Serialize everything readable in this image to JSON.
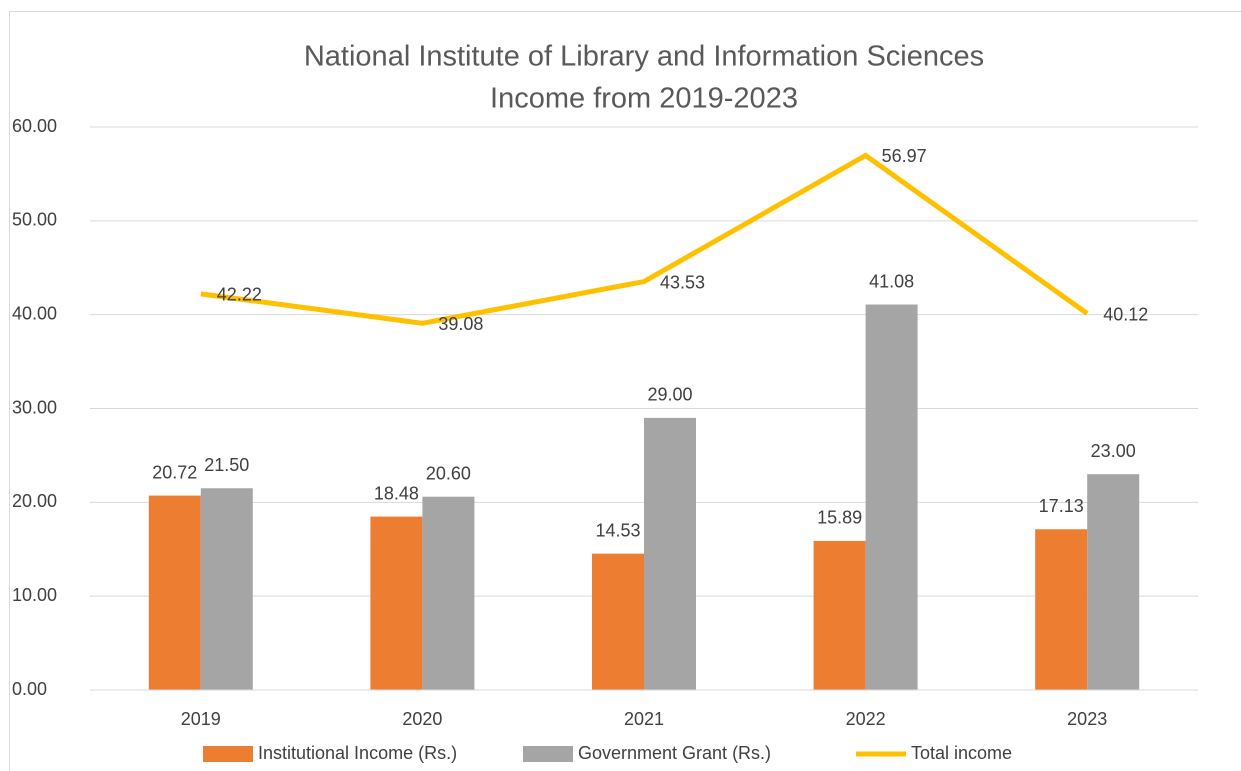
{
  "chart_data": {
    "type": "combo",
    "title": [
      "National Institute of Library and Information Sciences",
      "Income from 2019-2023"
    ],
    "categories": [
      "2019",
      "2020",
      "2021",
      "2022",
      "2023"
    ],
    "series": [
      {
        "name": "Institutional Income (Rs.)",
        "type": "bar",
        "color": "#ed7d31",
        "values": [
          20.72,
          18.48,
          14.53,
          15.89,
          17.13
        ],
        "value_labels": [
          "20.72",
          "18.48",
          "14.53",
          "15.89",
          "17.13"
        ]
      },
      {
        "name": "Government Grant (Rs.)",
        "type": "bar",
        "color": "#a5a5a5",
        "values": [
          21.5,
          20.6,
          29,
          41.08,
          23
        ],
        "value_labels": [
          "21.50",
          "20.60",
          "29.00",
          "41.08",
          "23.00"
        ]
      },
      {
        "name": "Total income",
        "type": "line",
        "color": "#ffc000",
        "values": [
          42.22,
          39.08,
          43.53,
          56.97,
          40.12
        ],
        "value_labels": [
          "42.22",
          "39.08",
          "43.53",
          "56.97",
          "40.12"
        ]
      }
    ],
    "ylim": [
      0,
      60
    ],
    "yticks": [
      {
        "value": 0,
        "label": "0.00"
      },
      {
        "value": 10,
        "label": "10.00"
      },
      {
        "value": 20,
        "label": "20.00"
      },
      {
        "value": 30,
        "label": "30.00"
      },
      {
        "value": 40,
        "label": "40.00"
      },
      {
        "value": 50,
        "label": "50.00"
      },
      {
        "value": 60,
        "label": "60.00"
      }
    ],
    "grid": true,
    "legend": "bottom"
  }
}
